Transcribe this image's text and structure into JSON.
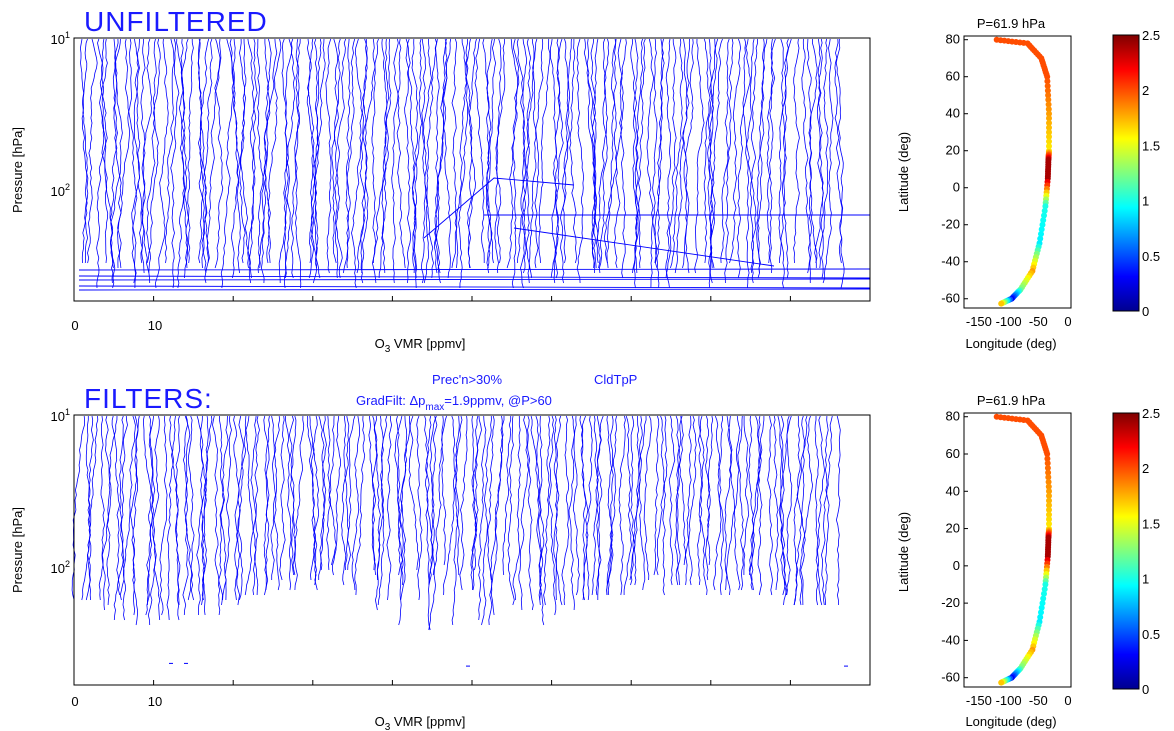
{
  "top": {
    "banner": "UNFILTERED",
    "profile_panel": {
      "ylabel": "Pressure [hPa]",
      "xlabel": "O3 VMR [ppmv]",
      "xlabel_base": "O",
      "xlabel_sub": "3",
      "xlabel_rest": " VMR [ppmv]",
      "x_ticks": [
        "0",
        "10"
      ],
      "y_ticks": [
        {
          "base": "10",
          "exp": "1"
        },
        {
          "base": "10",
          "exp": "2"
        }
      ]
    },
    "map_panel": {
      "title": "P=61.9 hPa",
      "ylabel": "Latitude (deg)",
      "xlabel": "Longitude (deg)",
      "x_ticks": [
        "-150",
        "-100",
        "-50",
        "0"
      ],
      "y_ticks": [
        "80",
        "60",
        "40",
        "20",
        "0",
        "-20",
        "-40",
        "-60"
      ]
    },
    "colorbar": {
      "ticks": [
        "2.5",
        "2",
        "1.5",
        "1",
        "0.5",
        "0"
      ]
    }
  },
  "bottom": {
    "banner": "FILTERS:",
    "filter_line1_a": "Prec'n>30%",
    "filter_line1_b": "CldTpP",
    "filter_line2_a": "GradFilt: Δp",
    "filter_line2_sub": "max",
    "filter_line2_b": "=1.9ppmv, @P>60",
    "profile_panel": {
      "ylabel": "Pressure [hPa]",
      "xlabel": "O3 VMR [ppmv]",
      "xlabel_base": "O",
      "xlabel_sub": "3",
      "xlabel_rest": " VMR [ppmv]",
      "x_ticks": [
        "0",
        "10"
      ],
      "y_ticks": [
        {
          "base": "10",
          "exp": "1"
        },
        {
          "base": "10",
          "exp": "2"
        }
      ]
    },
    "map_panel": {
      "title": "P=61.9 hPa",
      "ylabel": "Latitude (deg)",
      "xlabel": "Longitude (deg)",
      "x_ticks": [
        "-150",
        "-100",
        "-50",
        "0"
      ],
      "y_ticks": [
        "80",
        "60",
        "40",
        "20",
        "0",
        "-20",
        "-40",
        "-60"
      ]
    },
    "colorbar": {
      "ticks": [
        "2.5",
        "2",
        "1.5",
        "1",
        "0.5",
        "0"
      ]
    }
  },
  "colors": {
    "profile_line": "#0000ff",
    "banner_text": "#1a1aff"
  },
  "chart_data": [
    {
      "type": "line",
      "xlabel": "O3 VMR [ppmv]",
      "ylabel": "Pressure [hPa]",
      "y_scale": "log-reversed",
      "ylim_hpa": [
        10,
        500
      ],
      "note": "dense overlapping ozone profiles, unfiltered"
    },
    {
      "type": "scatter",
      "title": "P=61.9 hPa",
      "xlabel": "Longitude (deg)",
      "ylabel": "Latitude (deg)",
      "xlim": [
        -175,
        5
      ],
      "ylim": [
        -65,
        82
      ],
      "colorbar_range": [
        0,
        2.5
      ],
      "track": [
        {
          "lat": 80,
          "lon": -120,
          "v": 2.0
        },
        {
          "lat": 78,
          "lon": -68,
          "v": 2.0
        },
        {
          "lat": 70,
          "lon": -45,
          "v": 2.0
        },
        {
          "lat": 60,
          "lon": -35,
          "v": 2.0
        },
        {
          "lat": 40,
          "lon": -32,
          "v": 1.8
        },
        {
          "lat": 20,
          "lon": -32,
          "v": 1.6
        },
        {
          "lat": 15,
          "lon": -33,
          "v": 2.4
        },
        {
          "lat": 5,
          "lon": -34,
          "v": 2.4
        },
        {
          "lat": -10,
          "lon": -38,
          "v": 1.0
        },
        {
          "lat": -30,
          "lon": -48,
          "v": 0.9
        },
        {
          "lat": -45,
          "lon": -60,
          "v": 1.8
        },
        {
          "lat": -55,
          "lon": -80,
          "v": 1.2
        },
        {
          "lat": -60,
          "lon": -95,
          "v": 0.3
        },
        {
          "lat": -63,
          "lon": -115,
          "v": 1.9
        }
      ]
    },
    {
      "type": "line",
      "xlabel": "O3 VMR [ppmv]",
      "ylabel": "Pressure [hPa]",
      "y_scale": "log-reversed",
      "ylim_hpa": [
        10,
        500
      ],
      "note": "filtered ozone profiles (Prec'n>30%, CldTpP, GradFilt)"
    },
    {
      "type": "scatter",
      "title": "P=61.9 hPa",
      "xlabel": "Longitude (deg)",
      "ylabel": "Latitude (deg)",
      "xlim": [
        -175,
        5
      ],
      "ylim": [
        -65,
        82
      ],
      "colorbar_range": [
        0,
        2.5
      ],
      "track": [
        {
          "lat": 80,
          "lon": -120,
          "v": 2.0
        },
        {
          "lat": 78,
          "lon": -68,
          "v": 2.0
        },
        {
          "lat": 70,
          "lon": -45,
          "v": 2.0
        },
        {
          "lat": 60,
          "lon": -35,
          "v": 2.0
        },
        {
          "lat": 40,
          "lon": -32,
          "v": 1.8
        },
        {
          "lat": 20,
          "lon": -32,
          "v": 1.6
        },
        {
          "lat": 15,
          "lon": -33,
          "v": 2.4
        },
        {
          "lat": 5,
          "lon": -34,
          "v": 2.4
        },
        {
          "lat": -10,
          "lon": -38,
          "v": 1.0
        },
        {
          "lat": -30,
          "lon": -48,
          "v": 0.9
        },
        {
          "lat": -45,
          "lon": -60,
          "v": 1.8
        },
        {
          "lat": -55,
          "lon": -80,
          "v": 1.2
        },
        {
          "lat": -60,
          "lon": -95,
          "v": 0.3
        },
        {
          "lat": -63,
          "lon": -115,
          "v": 1.9
        }
      ]
    }
  ]
}
